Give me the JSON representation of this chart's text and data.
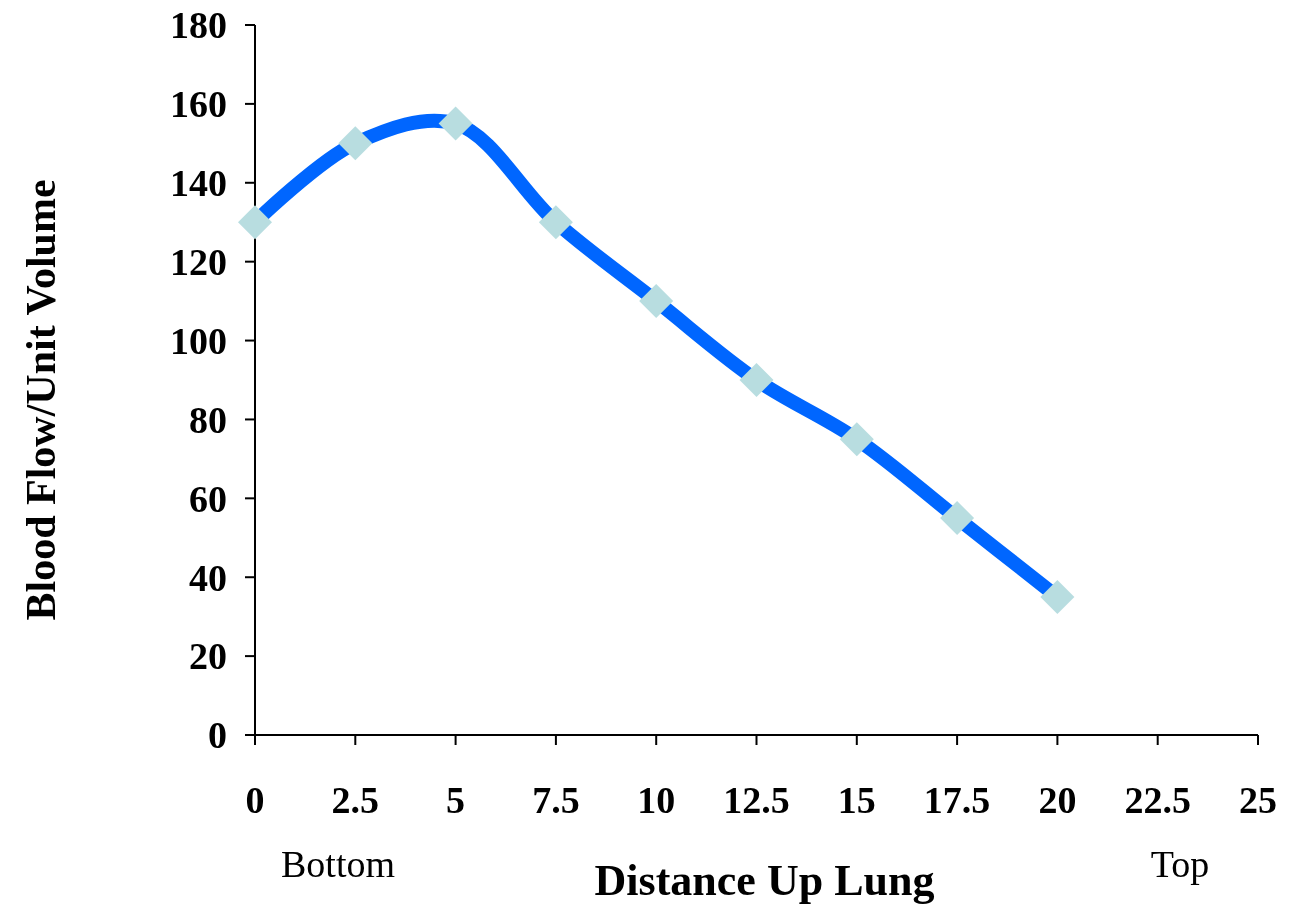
{
  "chart_data": {
    "type": "line",
    "xlabel": "Distance Up Lung",
    "ylabel": "Blood Flow/Unit Volume",
    "x": [
      0,
      2.5,
      5,
      7.5,
      10,
      12.5,
      15,
      17.5,
      20
    ],
    "series": [
      {
        "color": "#0066ff",
        "values": [
          130,
          150,
          155,
          130,
          110,
          90,
          75,
          55,
          35
        ]
      }
    ],
    "marker": "diamond",
    "xlim": [
      0,
      25
    ],
    "xticks": [
      0,
      2.5,
      5,
      7.5,
      10,
      12.5,
      15,
      17.5,
      20,
      22.5,
      25
    ],
    "ylim": [
      0,
      180
    ],
    "yticks": [
      0,
      20,
      40,
      60,
      80,
      100,
      120,
      140,
      160,
      180
    ],
    "grid": false,
    "annotations": [
      "Bottom",
      "Top"
    ]
  }
}
